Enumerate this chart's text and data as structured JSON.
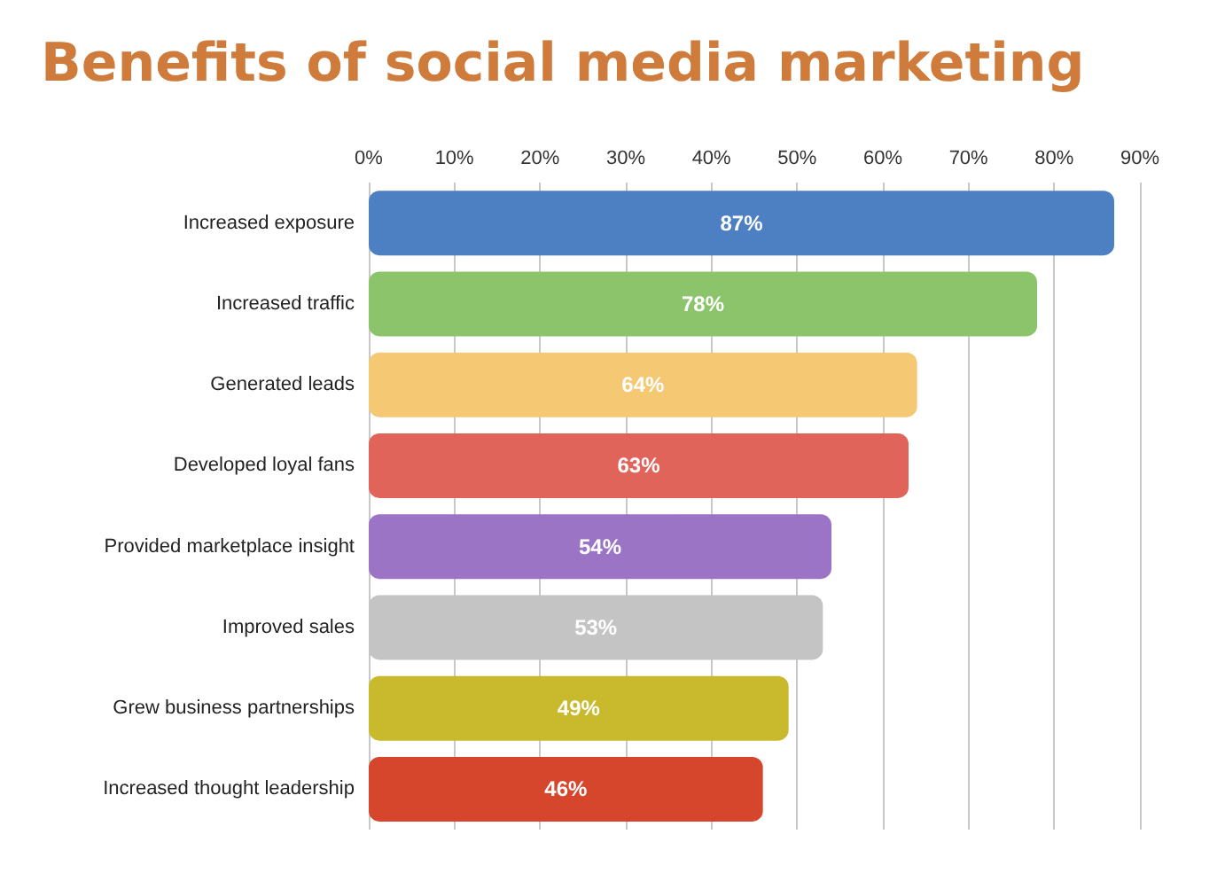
{
  "chart_data": {
    "type": "bar",
    "orientation": "horizontal",
    "title": "Benefits of social media marketing",
    "categories": [
      "Increased exposure",
      "Increased traffic",
      "Generated leads",
      "Developed loyal fans",
      "Provided marketplace insight",
      "Improved sales",
      "Grew business partnerships",
      "Increased thought leadership"
    ],
    "values": [
      87,
      78,
      64,
      63,
      54,
      53,
      49,
      46
    ],
    "colors": [
      "#4d80c2",
      "#8cc46c",
      "#f5c873",
      "#e0645a",
      "#9c74c6",
      "#c4c4c4",
      "#c9b92c",
      "#d6462c"
    ],
    "value_labels": [
      "87%",
      "78%",
      "64%",
      "63%",
      "54%",
      "53%",
      "49%",
      "46%"
    ],
    "xlim": [
      0,
      90
    ],
    "xticks": [
      {
        "value": 0,
        "label": "0%"
      },
      {
        "value": 10,
        "label": "10%"
      },
      {
        "value": 20,
        "label": "20%"
      },
      {
        "value": 30,
        "label": "30%"
      },
      {
        "value": 40,
        "label": "40%"
      },
      {
        "value": 50,
        "label": "50%"
      },
      {
        "value": 60,
        "label": "60%"
      },
      {
        "value": 70,
        "label": "70%"
      },
      {
        "value": 80,
        "label": "80%"
      },
      {
        "value": 90,
        "label": "90%"
      }
    ],
    "grid": "x"
  }
}
